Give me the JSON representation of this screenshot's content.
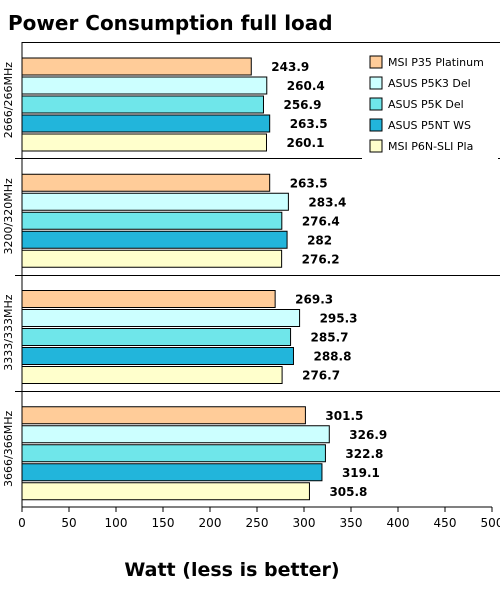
{
  "chart_data": {
    "type": "bar",
    "orientation": "horizontal",
    "title": "Power Consumption full load",
    "xlabel": "Watt (less is better)",
    "ylabel": "",
    "xlim": [
      0,
      500
    ],
    "xticks": [
      "0",
      "50",
      "100",
      "150",
      "200",
      "250",
      "300",
      "350",
      "400",
      "450",
      "500"
    ],
    "categories": [
      "2666/266MHz",
      "3200/320MHz",
      "3333/333MHz",
      "3666/366MHz"
    ],
    "series": [
      {
        "name": "MSI P35 Platinum",
        "color": "#ffcc99",
        "values": [
          243.9,
          263.5,
          269.3,
          301.5
        ],
        "labels": [
          "243.9",
          "263.5",
          "269.3",
          "301.5"
        ]
      },
      {
        "name": "ASUS P5K3 Del",
        "color": "#ccffff",
        "values": [
          260.4,
          283.4,
          295.3,
          326.9
        ],
        "labels": [
          "260.4",
          "283.4",
          "295.3",
          "326.9"
        ]
      },
      {
        "name": "ASUS P5K Del",
        "color": "#6fe6ea",
        "values": [
          256.9,
          276.4,
          285.7,
          322.8
        ],
        "labels": [
          "256.9",
          "276.4",
          "285.7",
          "322.8"
        ]
      },
      {
        "name": "ASUS P5NT WS",
        "color": "#22b5db",
        "values": [
          263.5,
          282,
          288.8,
          319.1
        ],
        "labels": [
          "263.5",
          "282",
          "288.8",
          "319.1"
        ]
      },
      {
        "name": "MSI P6N-SLI Pla",
        "color": "#ffffcc",
        "values": [
          260.1,
          276.2,
          276.7,
          305.8
        ],
        "labels": [
          "260.1",
          "276.2",
          "276.7",
          "305.8"
        ]
      }
    ],
    "grid": false,
    "legend": "top-right"
  }
}
